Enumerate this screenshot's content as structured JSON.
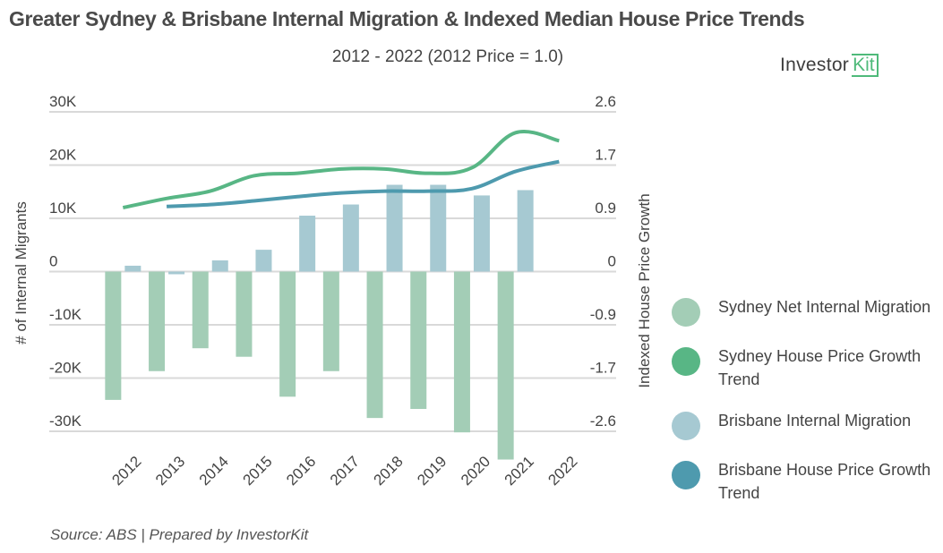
{
  "header": {
    "title": "Greater Sydney & Brisbane Internal Migration & Indexed Median House Price Trends",
    "subtitle": "2012 - 2022 (2012 Price = 1.0)",
    "logo_text": "Investor",
    "logo_kit": "Kit"
  },
  "footer": {
    "source": "Source: ABS | Prepared by InvestorKit"
  },
  "chart_data": {
    "type": "bar",
    "title": "Greater Sydney & Brisbane Internal Migration & Indexed Median House Price Trends",
    "subtitle": "2012 - 2022 (2012 Price = 1.0)",
    "categories": [
      "2012",
      "2013",
      "2014",
      "2015",
      "2016",
      "2017",
      "2018",
      "2019",
      "2020",
      "2021",
      "2022"
    ],
    "ylabel": "# of Internal Migrants",
    "y2label": "Indexed House Price Growth",
    "xlabel": "",
    "ylim": [
      -30000,
      30000
    ],
    "y2lim": [
      -2.6,
      2.6
    ],
    "yticks": [
      "30K",
      "20K",
      "10K",
      "0",
      "-10K",
      "-20K",
      "-30K"
    ],
    "y2ticks": [
      "2.6",
      "1.7",
      "0.9",
      "0",
      "-0.9",
      "-1.7",
      "-2.6"
    ],
    "grid": true,
    "legend_position": "right",
    "series": [
      {
        "name": "Sydney Net Internal Migration",
        "type": "bar",
        "axis": "left",
        "color": "#a3cdb6",
        "values": [
          -24100,
          -18700,
          -14400,
          -16000,
          -23500,
          -18700,
          -27500,
          -25800,
          -30200,
          -35300,
          null
        ]
      },
      {
        "name": "Sydney House Price Growth Trend",
        "type": "line",
        "axis": "right",
        "color": "#58b685",
        "values": [
          1.04,
          1.19,
          1.31,
          1.56,
          1.6,
          1.67,
          1.67,
          1.6,
          1.69,
          2.26,
          2.13
        ]
      },
      {
        "name": "Brisbane Internal Migration",
        "type": "bar",
        "axis": "left",
        "color": "#a6c9d2",
        "values": [
          1100,
          -500,
          2100,
          4100,
          10500,
          12600,
          16300,
          16300,
          14300,
          15300,
          null
        ]
      },
      {
        "name": "Brisbane House Price Growth Trend",
        "type": "line",
        "axis": "right",
        "color": "#4e9aae",
        "values": [
          null,
          1.06,
          1.09,
          1.15,
          1.22,
          1.28,
          1.31,
          1.31,
          1.35,
          1.63,
          1.79
        ]
      }
    ]
  }
}
